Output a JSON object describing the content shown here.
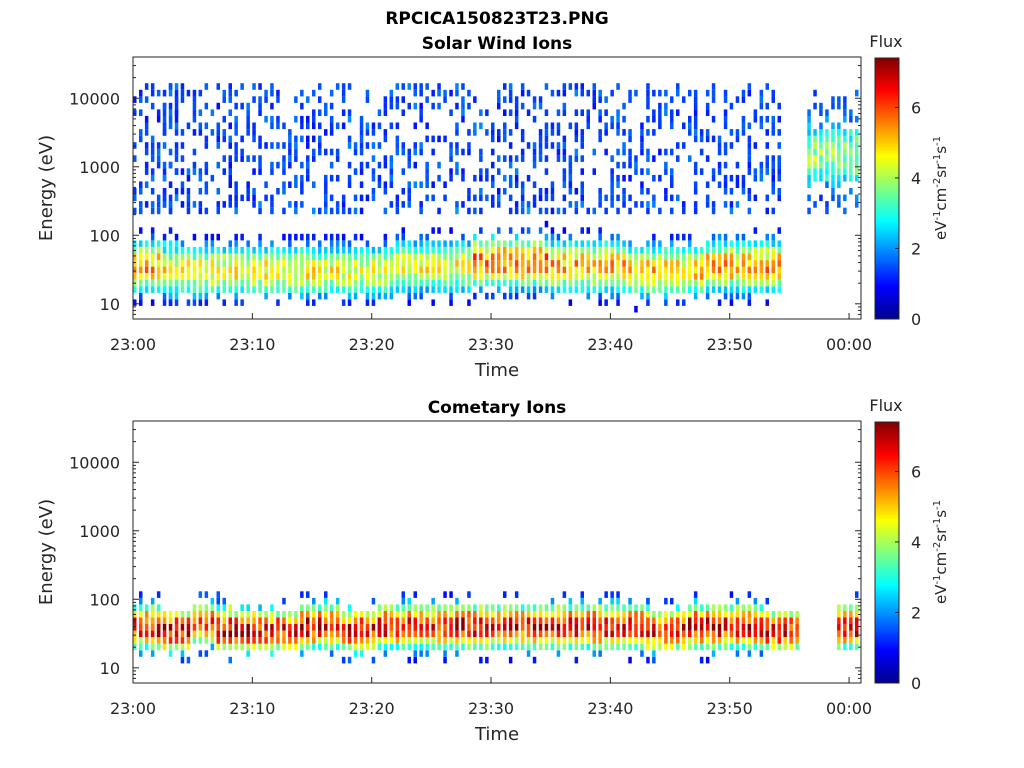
{
  "figure_title": "RPCICA150823T23.PNG",
  "colors": {
    "colormap": "jet",
    "axis": "#262626",
    "background": "#ffffff"
  },
  "chart_data": [
    {
      "type": "heatmap",
      "title": "Solar Wind Ions",
      "xlabel": "Time",
      "ylabel": "Energy (eV)",
      "y_scale": "log",
      "ylim": [
        6,
        40000
      ],
      "xlim": [
        "23:00",
        "00:01"
      ],
      "x_tick_labels": [
        "23:00",
        "23:10",
        "23:20",
        "23:30",
        "23:40",
        "23:50",
        "00:00"
      ],
      "y_tick_labels": [
        "10",
        "100",
        "1000",
        "10000"
      ],
      "colorbar": {
        "label": "Flux",
        "unit": "eV-1cm-2sr-1s-1",
        "range": [
          0,
          7.4
        ],
        "ticks": [
          "0",
          "2",
          "4",
          "6"
        ]
      },
      "bursts": [
        {
          "time_min": 0.5,
          "peak_energy_eV": 35,
          "peak_flux": 5.5,
          "max_energy_eV": 15000
        },
        {
          "time_min": 5.5,
          "peak_energy_eV": 30,
          "peak_flux": 5.0,
          "max_energy_eV": 15000
        },
        {
          "time_min": 12.0,
          "peak_energy_eV": 30,
          "peak_flux": 5.0,
          "max_energy_eV": 15000
        },
        {
          "time_min": 18.5,
          "peak_energy_eV": 30,
          "peak_flux": 4.8,
          "max_energy_eV": 15000
        },
        {
          "time_min": 25.0,
          "peak_energy_eV": 35,
          "peak_flux": 4.8,
          "max_energy_eV": 15000
        },
        {
          "time_min": 31.5,
          "peak_energy_eV": 40,
          "peak_flux": 6.0,
          "max_energy_eV": 15000
        },
        {
          "time_min": 38.0,
          "peak_energy_eV": 35,
          "peak_flux": 5.5,
          "max_energy_eV": 15000
        },
        {
          "time_min": 44.5,
          "peak_energy_eV": 30,
          "peak_flux": 5.3,
          "max_energy_eV": 15000
        },
        {
          "time_min": 51.0,
          "peak_energy_eV": 35,
          "peak_flux": 5.6,
          "max_energy_eV": 15000
        },
        {
          "time_min": 59.5,
          "peak_energy_eV": 1500,
          "peak_flux": 2.5,
          "max_energy_eV": 12000
        }
      ]
    },
    {
      "type": "heatmap",
      "title": "Cometary Ions",
      "xlabel": "Time",
      "ylabel": "Energy (eV)",
      "y_scale": "log",
      "ylim": [
        6,
        40000
      ],
      "xlim": [
        "23:00",
        "00:01"
      ],
      "x_tick_labels": [
        "23:00",
        "23:10",
        "23:20",
        "23:30",
        "23:40",
        "23:50",
        "00:00"
      ],
      "y_tick_labels": [
        "10",
        "100",
        "1000",
        "10000"
      ],
      "colorbar": {
        "label": "Flux",
        "unit": "eV-1cm-2sr-1s-1",
        "range": [
          0,
          7.4
        ],
        "ticks": [
          "0",
          "2",
          "4",
          "6"
        ]
      },
      "bursts": [
        {
          "time_min": 0.5,
          "peak_energy_eV": 40,
          "peak_flux": 6.8,
          "max_energy_eV": 400
        },
        {
          "time_min": 3.0,
          "peak_energy_eV": 35,
          "peak_flux": 7.0,
          "max_energy_eV": 500
        },
        {
          "time_min": 6.5,
          "peak_energy_eV": 45,
          "peak_flux": 6.5,
          "max_energy_eV": 600
        },
        {
          "time_min": 8.5,
          "peak_energy_eV": 35,
          "peak_flux": 7.2,
          "max_energy_eV": 600
        },
        {
          "time_min": 12.0,
          "peak_energy_eV": 35,
          "peak_flux": 6.8,
          "max_energy_eV": 400
        },
        {
          "time_min": 15.5,
          "peak_energy_eV": 40,
          "peak_flux": 7.2,
          "max_energy_eV": 500
        },
        {
          "time_min": 19.0,
          "peak_energy_eV": 35,
          "peak_flux": 6.9,
          "max_energy_eV": 400
        },
        {
          "time_min": 22.0,
          "peak_energy_eV": 40,
          "peak_flux": 7.0,
          "max_energy_eV": 500
        },
        {
          "time_min": 25.0,
          "peak_energy_eV": 40,
          "peak_flux": 6.8,
          "max_energy_eV": 600
        },
        {
          "time_min": 28.5,
          "peak_energy_eV": 40,
          "peak_flux": 7.2,
          "max_energy_eV": 500
        },
        {
          "time_min": 31.5,
          "peak_energy_eV": 40,
          "peak_flux": 6.8,
          "max_energy_eV": 600
        },
        {
          "time_min": 35.0,
          "peak_energy_eV": 40,
          "peak_flux": 7.0,
          "max_energy_eV": 400
        },
        {
          "time_min": 38.0,
          "peak_energy_eV": 40,
          "peak_flux": 7.0,
          "max_energy_eV": 600
        },
        {
          "time_min": 41.5,
          "peak_energy_eV": 40,
          "peak_flux": 7.0,
          "max_energy_eV": 500
        },
        {
          "time_min": 44.5,
          "peak_energy_eV": 35,
          "peak_flux": 6.8,
          "max_energy_eV": 400
        },
        {
          "time_min": 48.0,
          "peak_energy_eV": 40,
          "peak_flux": 7.2,
          "max_energy_eV": 400
        },
        {
          "time_min": 51.0,
          "peak_energy_eV": 40,
          "peak_flux": 7.0,
          "max_energy_eV": 500
        },
        {
          "time_min": 54.0,
          "peak_energy_eV": 35,
          "peak_flux": 6.8,
          "max_energy_eV": 400
        },
        {
          "time_min": 60.5,
          "peak_energy_eV": 40,
          "peak_flux": 7.2,
          "max_energy_eV": 400
        }
      ]
    }
  ]
}
